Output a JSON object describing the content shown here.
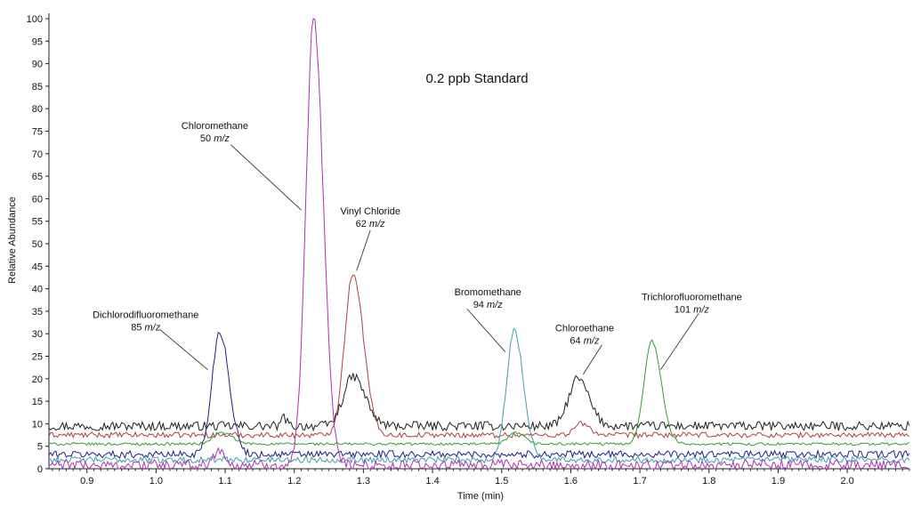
{
  "chart_data": {
    "type": "line",
    "title": "0.2 ppb Standard",
    "xlabel": "Time (min)",
    "ylabel": "Relative Abundance",
    "xlim": [
      0.845,
      2.09
    ],
    "ylim": [
      0,
      100
    ],
    "grid": false,
    "x_ticks": [
      0.9,
      1.0,
      1.1,
      1.2,
      1.3,
      1.4,
      1.5,
      1.6,
      1.7,
      1.8,
      1.9,
      2.0
    ],
    "x_tick_labels": [
      "0.9",
      "1.0",
      "1.1",
      "1.2",
      "1.3",
      "1.4",
      "1.5",
      "1.6",
      "1.7",
      "1.8",
      "1.9",
      "2.0"
    ],
    "y_ticks": [
      0,
      5,
      10,
      15,
      20,
      25,
      30,
      35,
      40,
      45,
      50,
      55,
      60,
      65,
      70,
      75,
      80,
      85,
      90,
      95,
      100
    ],
    "y_tick_labels": [
      "0",
      "5",
      "10",
      "15",
      "20",
      "25",
      "30",
      "35",
      "40",
      "45",
      "50",
      "55",
      "60",
      "65",
      "70",
      "75",
      "80",
      "85",
      "90",
      "95",
      "100"
    ],
    "series": [
      {
        "color": "#1f1f1f",
        "baseline": 9.5,
        "noise": 1.0,
        "peaks": [
          {
            "x": 1.285,
            "y": 20.5,
            "w": 0.014
          },
          {
            "x": 1.61,
            "y": 20.0,
            "w": 0.013
          },
          {
            "x": 1.185,
            "y": 11.5,
            "w": 0.003
          }
        ]
      },
      {
        "color": "#b04040",
        "baseline": 7.5,
        "noise": 0.6,
        "peaks": [
          {
            "x": 1.285,
            "y": 43.5,
            "w": 0.012
          },
          {
            "x": 1.615,
            "y": 10.0,
            "w": 0.01
          }
        ]
      },
      {
        "color": "#30a030",
        "baseline": 5.5,
        "noise": 0.3,
        "peaks": [
          {
            "x": 1.095,
            "y": 8.0,
            "w": 0.012
          },
          {
            "x": 1.717,
            "y": 28.5,
            "w": 0.011
          },
          {
            "x": 1.52,
            "y": 8.0,
            "w": 0.01
          }
        ]
      },
      {
        "color": "#202080",
        "baseline": 3.2,
        "noise": 0.8,
        "peaks": [
          {
            "x": 1.092,
            "y": 30.5,
            "w": 0.011
          }
        ]
      },
      {
        "color": "#40a0a8",
        "baseline": 2.0,
        "noise": 0.7,
        "peaks": [
          {
            "x": 1.518,
            "y": 30.5,
            "w": 0.011
          }
        ]
      },
      {
        "color": "#b030b0",
        "baseline": 0.8,
        "noise": 1.2,
        "peaks": [
          {
            "x": 1.228,
            "y": 100.0,
            "w": 0.011
          },
          {
            "x": 1.09,
            "y": 4.5,
            "w": 0.006
          }
        ]
      }
    ],
    "annotations": [
      {
        "name": "Dichlorodifluoromethane",
        "mz": "85",
        "unit": "m/z",
        "x": 1.09,
        "y": 30.5,
        "tx": 0.985,
        "ty": 33.5,
        "lx1": 1.005,
        "ly1": 31,
        "lx2": 1.075,
        "ly2": 22
      },
      {
        "name": "Chloromethane",
        "mz": "50",
        "unit": "m/z",
        "x": 1.228,
        "y": 100,
        "tx": 1.085,
        "ty": 75.5,
        "lx1": 1.108,
        "ly1": 72,
        "lx2": 1.21,
        "ly2": 57.5
      },
      {
        "name": "Vinyl Chloride",
        "mz": "62",
        "unit": "m/z",
        "x": 1.285,
        "y": 43.5,
        "tx": 1.31,
        "ty": 56.5,
        "lx1": 1.31,
        "ly1": 53,
        "lx2": 1.29,
        "ly2": 44
      },
      {
        "name": "Bromomethane",
        "mz": "94",
        "unit": "m/z",
        "x": 1.518,
        "y": 30.5,
        "tx": 1.48,
        "ty": 38.5,
        "lx1": 1.45,
        "ly1": 35.5,
        "lx2": 1.505,
        "ly2": 26
      },
      {
        "name": "Chloroethane",
        "mz": "64",
        "unit": "m/z",
        "x": 1.61,
        "y": 20.0,
        "tx": 1.62,
        "ty": 30.5,
        "lx1": 1.645,
        "ly1": 27.5,
        "lx2": 1.618,
        "ly2": 21
      },
      {
        "name": "Trichlorofluoromethane",
        "mz": "101",
        "unit": "m/z",
        "x": 1.717,
        "y": 28.5,
        "tx": 1.775,
        "ty": 37.5,
        "lx1": 1.785,
        "ly1": 34.5,
        "lx2": 1.73,
        "ly2": 22
      }
    ]
  }
}
